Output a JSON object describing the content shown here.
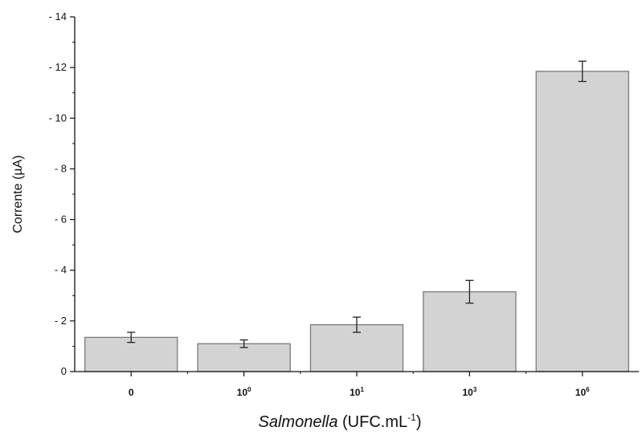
{
  "chart_data": {
    "type": "bar",
    "xlabel": {
      "italic": "Salmonella",
      "rest": " (UFC.mL",
      "sup": "-1",
      "close": ")"
    },
    "ylabel": "Corrente (µA)",
    "ylim": [
      0,
      -14
    ],
    "yticks": [
      0,
      -2,
      -4,
      -6,
      -8,
      -10,
      -12,
      -14
    ],
    "ytick_labels": [
      "0",
      "- 2",
      "- 4",
      "- 6",
      "- 8",
      "- 10",
      "- 12",
      "- 14"
    ],
    "categories": [
      {
        "base": "0",
        "exp": ""
      },
      {
        "base": "10",
        "exp": "0"
      },
      {
        "base": "10",
        "exp": "1"
      },
      {
        "base": "10",
        "exp": "3"
      },
      {
        "base": "10",
        "exp": "6"
      }
    ],
    "values": [
      -1.35,
      -1.1,
      -1.85,
      -3.15,
      -11.85
    ],
    "errors": [
      0.2,
      0.15,
      0.3,
      0.45,
      0.4
    ],
    "bar_color": "#d3d3d3",
    "bar_edge": "#7a7a7a",
    "grid": false
  }
}
